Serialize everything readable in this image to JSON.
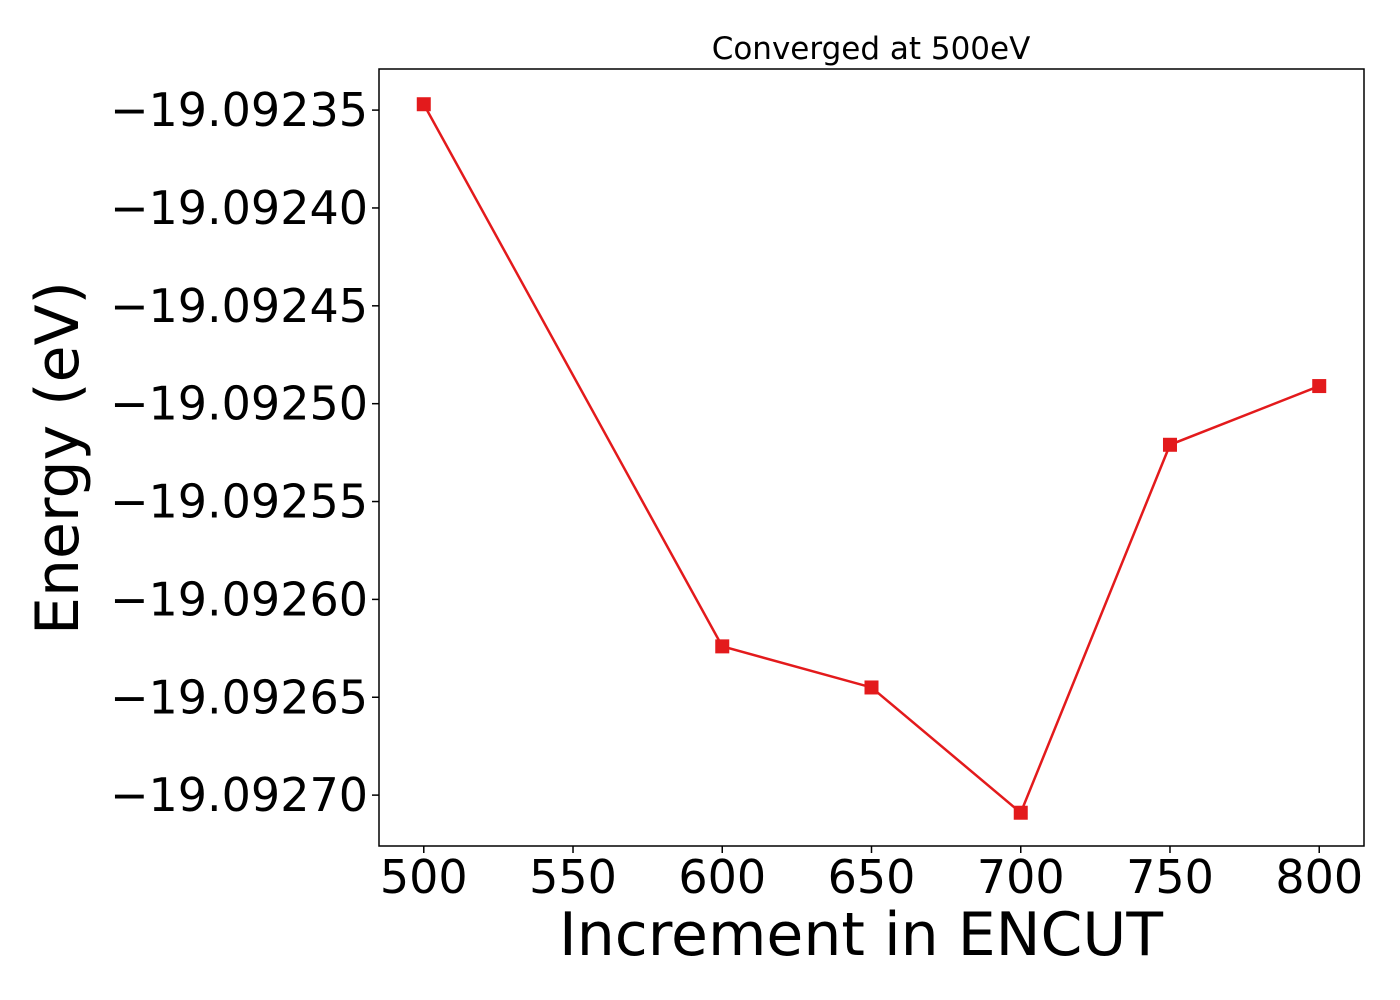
{
  "chart_data": {
    "type": "line",
    "title": "Converged at 500eV",
    "xlabel": "Increment in ENCUT",
    "ylabel": "Energy (eV)",
    "x": [
      500,
      600,
      650,
      700,
      750,
      800
    ],
    "series": [
      {
        "values": [
          -19.092347,
          -19.092624,
          -19.092645,
          -19.092709,
          -19.092521,
          -19.092491
        ],
        "color": "#e31a1c",
        "marker": "square"
      }
    ],
    "xticks": [
      500,
      550,
      600,
      650,
      700,
      750,
      800
    ],
    "xtick_labels": [
      "500",
      "550",
      "600",
      "650",
      "700",
      "750",
      "800"
    ],
    "yticks": [
      -19.09235,
      -19.0924,
      -19.09245,
      -19.0925,
      -19.09255,
      -19.0926,
      -19.09265,
      -19.0927
    ],
    "ytick_labels": [
      "−19.09235",
      "−19.09240",
      "−19.09245",
      "−19.09250",
      "−19.09255",
      "−19.09260",
      "−19.09265",
      "−19.09270"
    ],
    "xlim": [
      485,
      815
    ],
    "ylim": [
      -19.092726,
      -19.092329
    ],
    "grid": false,
    "legend": "none"
  }
}
